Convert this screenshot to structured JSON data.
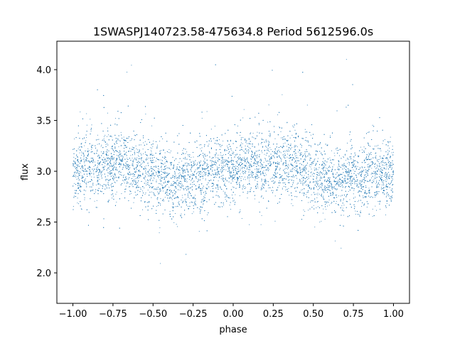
{
  "chart_data": {
    "type": "scatter",
    "title": "1SWASPJ140723.58-475634.8 Period 5612596.0s",
    "xlabel": "phase",
    "ylabel": "flux",
    "xlim": [
      -1.1,
      1.1
    ],
    "ylim": [
      1.7,
      4.28
    ],
    "xticks": [
      -1.0,
      -0.75,
      -0.5,
      -0.25,
      0.0,
      0.25,
      0.5,
      0.75,
      1.0
    ],
    "xtick_labels": [
      "−1.00",
      "−0.75",
      "−0.50",
      "−0.25",
      "0.00",
      "0.25",
      "0.50",
      "0.75",
      "1.00"
    ],
    "yticks": [
      2.0,
      2.5,
      3.0,
      3.5,
      4.0
    ],
    "ytick_labels": [
      "2.0",
      "2.5",
      "3.0",
      "3.5",
      "4.0"
    ],
    "grid": false,
    "marker_color": "#1f77b4",
    "series": [
      {
        "points_description_note": "",
        "x": [
          -1.0,
          -0.97,
          -0.93,
          -0.9,
          -0.87,
          -0.84,
          -0.8,
          -0.77,
          -0.73,
          -0.7,
          -0.67,
          -0.63,
          -0.6,
          -0.57,
          -0.53,
          -0.5,
          -0.47,
          -0.43,
          -0.4,
          -0.37,
          -0.33,
          -0.3,
          -0.27,
          -0.23,
          -0.2,
          -0.17,
          -0.13,
          -0.1,
          -0.07,
          -0.03,
          0.0,
          0.03,
          0.07,
          0.1,
          0.13,
          0.17,
          0.2,
          0.23,
          0.27,
          0.3,
          0.33,
          0.37,
          0.4,
          0.43,
          0.47,
          0.5,
          0.53,
          0.57,
          0.6,
          0.63,
          0.67,
          0.7,
          0.73,
          0.77,
          0.8,
          0.84,
          0.87,
          0.9,
          0.93,
          0.97,
          1.0
        ],
        "y": [
          2.95,
          3.05,
          3.0,
          3.1,
          2.98,
          3.02,
          3.08,
          3.05,
          3.12,
          3.1,
          3.08,
          3.06,
          3.05,
          3.04,
          3.0,
          2.98,
          2.95,
          2.92,
          2.9,
          2.88,
          2.9,
          2.92,
          2.95,
          2.93,
          2.95,
          2.97,
          3.0,
          3.02,
          3.0,
          3.03,
          3.05,
          3.02,
          3.06,
          3.04,
          3.08,
          3.05,
          3.04,
          3.06,
          3.08,
          3.1,
          3.08,
          3.06,
          3.05,
          3.02,
          3.0,
          2.98,
          2.96,
          2.94,
          2.92,
          2.9,
          2.92,
          2.93,
          2.95,
          2.94,
          2.95,
          2.96,
          2.95,
          2.97,
          2.96,
          2.95,
          2.97
        ]
      }
    ]
  }
}
